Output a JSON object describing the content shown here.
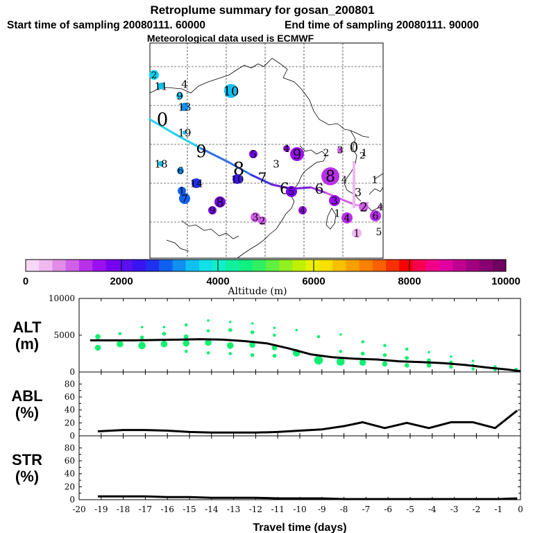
{
  "header": {
    "title": "Retroplume summary for gosan_200801",
    "start_label": "Start time of sampling 20080111. 60000",
    "end_label": "End time of sampling 20080111. 90000",
    "met_label": "Meteorological data used is ECMWF"
  },
  "colorbar": {
    "ticks": [
      "0",
      "2000",
      "4000",
      "6000",
      "8000",
      "10000"
    ],
    "label": "Altitude (m)",
    "colors": [
      "#f7d8f7",
      "#efb8ef",
      "#e08ce8",
      "#d060e8",
      "#b830e8",
      "#9a10f0",
      "#7800f0",
      "#5a10f0",
      "#3a14f0",
      "#2030f0",
      "#1060f0",
      "#1090f0",
      "#10c0f0",
      "#10e0e8",
      "#10f0c8",
      "#10f0a0",
      "#10f080",
      "#30f060",
      "#60f040",
      "#90f020",
      "#c0f000",
      "#e8f000",
      "#f8e000",
      "#f8c000",
      "#f8a000",
      "#f88000",
      "#f86000",
      "#f83000",
      "#f80000",
      "#f80050",
      "#f00088",
      "#e000a0",
      "#c00090",
      "#a00080",
      "#880070",
      "#700060"
    ]
  },
  "map": {
    "trajectory_colors": [
      "#20d0f0",
      "#3070e8",
      "#4030e8",
      "#7020e0",
      "#a030e8",
      "#d060e0",
      "#e8a0f0"
    ],
    "cluster_labels": [
      {
        "t": "2",
        "c": "#10d0f0"
      },
      {
        "t": "11",
        "c": "#10c0e8"
      },
      {
        "t": "4",
        "c": "#10c0e8"
      },
      {
        "t": "9",
        "c": "#10c0e8"
      },
      {
        "t": "13",
        "c": "#1090f0"
      },
      {
        "t": "10",
        "c": "#10c0f0"
      },
      {
        "t": "0",
        "c": "#10d0f0"
      },
      {
        "t": "19",
        "c": "#10c0f0"
      },
      {
        "t": "9",
        "c": "#10c0f0"
      },
      {
        "t": "18",
        "c": "#10c0f0"
      },
      {
        "t": "6",
        "c": "#1090f0"
      },
      {
        "t": "8",
        "c": "#3a14f0"
      },
      {
        "t": "5",
        "c": "#7800f0"
      },
      {
        "t": "4",
        "c": "#9a10f0"
      },
      {
        "t": "9",
        "c": "#9a10f0"
      },
      {
        "t": "3",
        "c": "#5a10f0"
      },
      {
        "t": "2",
        "c": "#b830e8"
      },
      {
        "t": "3",
        "c": "#d060e8"
      },
      {
        "t": "0",
        "c": "#e08ce8"
      },
      {
        "t": "1",
        "c": "#efb8ef"
      },
      {
        "t": "7",
        "c": "#3a14f0"
      },
      {
        "t": "10",
        "c": "#3a14f0"
      },
      {
        "t": "14",
        "c": "#2030f0"
      },
      {
        "t": "1",
        "c": "#1060f0"
      },
      {
        "t": "7",
        "c": "#1060f0"
      },
      {
        "t": "8",
        "c": "#7800f0"
      },
      {
        "t": "9",
        "c": "#7800f0"
      },
      {
        "t": "6",
        "c": "#7800f0"
      },
      {
        "t": "5",
        "c": "#7800f0"
      },
      {
        "t": "6",
        "c": "#9a10f0"
      },
      {
        "t": "8",
        "c": "#b830e8"
      },
      {
        "t": "4",
        "c": "#d060e8"
      },
      {
        "t": "4",
        "c": "#9a10f0"
      },
      {
        "t": "3",
        "c": "#9a10f0"
      },
      {
        "t": "4",
        "c": "#b830e8"
      },
      {
        "t": "1",
        "c": "#d060e8"
      },
      {
        "t": "3",
        "c": "#d060e8"
      },
      {
        "t": "2",
        "c": "#d060e8"
      },
      {
        "t": "1",
        "c": "#e08ce8"
      },
      {
        "t": "4",
        "c": "#e08ce8"
      },
      {
        "t": "1",
        "c": "#efb8ef"
      },
      {
        "t": "2",
        "c": "#d060e8"
      },
      {
        "t": "6",
        "c": "#b830e8"
      },
      {
        "t": "5",
        "c": "#d060e8"
      },
      {
        "t": "3",
        "c": "#d060e8"
      },
      {
        "t": "2",
        "c": "#d060e8"
      }
    ]
  },
  "chart_data": [
    {
      "type": "line",
      "panel": "ALT",
      "ylabel": [
        "ALT",
        "(m)"
      ],
      "ylim": [
        0,
        10000
      ],
      "yticks": [
        "0",
        "5000",
        "10000"
      ],
      "xlim": [
        -20,
        0
      ],
      "x": [
        -19.5,
        -18.5,
        -17.5,
        -16.5,
        -15.5,
        -14.5,
        -13.5,
        -12.5,
        -11.5,
        -10.5,
        -9.5,
        -8.5,
        -7.5,
        -6.5,
        -5.5,
        -4.5,
        -3.5,
        -2.5,
        -1.5,
        -0.5,
        0
      ],
      "y": [
        4300,
        4300,
        4300,
        4350,
        4400,
        4450,
        4400,
        4200,
        3900,
        3200,
        2400,
        2000,
        1800,
        1700,
        1450,
        1350,
        1200,
        950,
        600,
        300,
        100
      ],
      "particle_color": "#10f070",
      "particles": [
        {
          "x": -19.15,
          "y": 4800,
          "s": 6
        },
        {
          "x": -19.15,
          "y": 3300,
          "s": 7
        },
        {
          "x": -18.15,
          "y": 5200,
          "s": 3
        },
        {
          "x": -18.15,
          "y": 3800,
          "s": 8
        },
        {
          "x": -17.15,
          "y": 6100,
          "s": 2
        },
        {
          "x": -17.15,
          "y": 4700,
          "s": 4
        },
        {
          "x": -17.15,
          "y": 3600,
          "s": 9
        },
        {
          "x": -16.15,
          "y": 6100,
          "s": 2
        },
        {
          "x": -16.15,
          "y": 5200,
          "s": 4
        },
        {
          "x": -16.15,
          "y": 3800,
          "s": 8
        },
        {
          "x": -15.15,
          "y": 6400,
          "s": 3
        },
        {
          "x": -15.15,
          "y": 4800,
          "s": 5
        },
        {
          "x": -15.15,
          "y": 3900,
          "s": 8
        },
        {
          "x": -15.15,
          "y": 2800,
          "s": 3
        },
        {
          "x": -14.15,
          "y": 7000,
          "s": 2
        },
        {
          "x": -14.15,
          "y": 5600,
          "s": 3
        },
        {
          "x": -14.15,
          "y": 4000,
          "s": 8
        },
        {
          "x": -14.15,
          "y": 2600,
          "s": 3
        },
        {
          "x": -13.15,
          "y": 6800,
          "s": 2
        },
        {
          "x": -13.15,
          "y": 5700,
          "s": 4
        },
        {
          "x": -13.15,
          "y": 3600,
          "s": 8
        },
        {
          "x": -13.15,
          "y": 2500,
          "s": 3
        },
        {
          "x": -12.15,
          "y": 6600,
          "s": 2
        },
        {
          "x": -12.15,
          "y": 5400,
          "s": 4
        },
        {
          "x": -12.15,
          "y": 3700,
          "s": 7
        },
        {
          "x": -12.15,
          "y": 2300,
          "s": 4
        },
        {
          "x": -11.15,
          "y": 6000,
          "s": 2
        },
        {
          "x": -11.15,
          "y": 5000,
          "s": 3
        },
        {
          "x": -11.15,
          "y": 3300,
          "s": 6
        },
        {
          "x": -11.15,
          "y": 2200,
          "s": 4
        },
        {
          "x": -10.15,
          "y": 5700,
          "s": 2
        },
        {
          "x": -10.15,
          "y": 2600,
          "s": 9
        },
        {
          "x": -9.15,
          "y": 4800,
          "s": 3
        },
        {
          "x": -9.15,
          "y": 1600,
          "s": 11
        },
        {
          "x": -8.15,
          "y": 5100,
          "s": 2
        },
        {
          "x": -8.15,
          "y": 2800,
          "s": 3
        },
        {
          "x": -8.15,
          "y": 1400,
          "s": 10
        },
        {
          "x": -7.15,
          "y": 4100,
          "s": 3
        },
        {
          "x": -7.15,
          "y": 2500,
          "s": 4
        },
        {
          "x": -7.15,
          "y": 1300,
          "s": 8
        },
        {
          "x": -6.15,
          "y": 3600,
          "s": 3
        },
        {
          "x": -6.15,
          "y": 2300,
          "s": 4
        },
        {
          "x": -6.15,
          "y": 1100,
          "s": 6
        },
        {
          "x": -5.15,
          "y": 3100,
          "s": 3
        },
        {
          "x": -5.15,
          "y": 1900,
          "s": 4
        },
        {
          "x": -5.15,
          "y": 900,
          "s": 5
        },
        {
          "x": -4.15,
          "y": 2700,
          "s": 2
        },
        {
          "x": -4.15,
          "y": 1600,
          "s": 4
        },
        {
          "x": -4.15,
          "y": 900,
          "s": 5
        },
        {
          "x": -3.15,
          "y": 2100,
          "s": 2
        },
        {
          "x": -3.15,
          "y": 1300,
          "s": 4
        },
        {
          "x": -3.15,
          "y": 700,
          "s": 4
        },
        {
          "x": -2.15,
          "y": 1500,
          "s": 2
        },
        {
          "x": -2.15,
          "y": 900,
          "s": 3
        },
        {
          "x": -2.15,
          "y": 400,
          "s": 3
        },
        {
          "x": -1.15,
          "y": 700,
          "s": 3
        },
        {
          "x": -1.15,
          "y": 300,
          "s": 3
        },
        {
          "x": -0.2,
          "y": 300,
          "s": 4
        }
      ]
    },
    {
      "type": "line",
      "panel": "ABL",
      "ylabel": [
        "ABL",
        "(%)"
      ],
      "ylim": [
        0,
        90
      ],
      "yticks": [
        "0",
        "20",
        "40",
        "60",
        "80"
      ],
      "xlim": [
        -20,
        0
      ],
      "x": [
        -19.15,
        -18,
        -17,
        -16,
        -15,
        -14,
        -13,
        -12,
        -11,
        -10,
        -9,
        -8,
        -7.15,
        -6.15,
        -5.15,
        -4.15,
        -3.15,
        -2.15,
        -1.15,
        -0.15
      ],
      "y": [
        7,
        9,
        9,
        8,
        6,
        5,
        5,
        5,
        6,
        8,
        10,
        15,
        21,
        12,
        20,
        12,
        21,
        21,
        12,
        39
      ]
    },
    {
      "type": "line",
      "panel": "STR",
      "ylabel": [
        "STR",
        "(%)"
      ],
      "ylim": [
        0,
        90
      ],
      "yticks": [
        "0",
        "20",
        "40",
        "60",
        "80"
      ],
      "xlim": [
        -20,
        0
      ],
      "xlabel": "Travel time (days)",
      "xticks": [
        "-20",
        "-19",
        "-18",
        "-17",
        "-16",
        "-15",
        "-14",
        "-13",
        "-12",
        "-11",
        "-10",
        "-9",
        "-8",
        "-7",
        "-6",
        "-5",
        "-4",
        "-3",
        "-2",
        "-1",
        "0"
      ],
      "x": [
        -19.15,
        -18,
        -17,
        -16,
        -15,
        -14,
        -13,
        -12,
        -11,
        -10,
        -9,
        -8,
        -7,
        -6,
        -5,
        -4,
        -3,
        -2,
        -1,
        -0.15
      ],
      "y": [
        5,
        5,
        5,
        4,
        4,
        3,
        3,
        3,
        2,
        2,
        2,
        1,
        1,
        1,
        1,
        1,
        1,
        1,
        1,
        2
      ]
    }
  ]
}
